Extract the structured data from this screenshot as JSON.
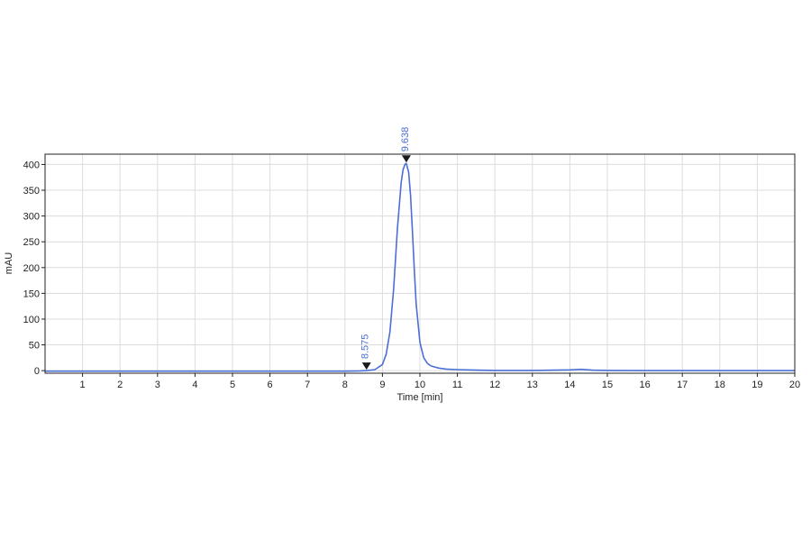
{
  "chart_data": {
    "type": "line",
    "xlabel": "Time [min]",
    "ylabel": "mAU",
    "xlim": [
      0,
      20
    ],
    "ylim": [
      -5,
      420
    ],
    "xticks": [
      1,
      2,
      3,
      4,
      5,
      6,
      7,
      8,
      9,
      10,
      11,
      12,
      13,
      14,
      15,
      16,
      17,
      18,
      19,
      20
    ],
    "yticks": [
      0,
      50,
      100,
      150,
      200,
      250,
      300,
      350,
      400
    ],
    "grid": true,
    "line_color": "#4a6fd6",
    "series": [
      {
        "x": [
          0,
          1,
          2,
          3,
          4,
          5,
          6,
          7,
          8,
          8.4,
          8.575,
          8.8,
          9.0,
          9.1,
          9.2,
          9.3,
          9.4,
          9.5,
          9.55,
          9.6,
          9.638,
          9.7,
          9.75,
          9.8,
          9.85,
          9.9,
          10.0,
          10.1,
          10.2,
          10.3,
          10.5,
          10.7,
          11.0,
          11.5,
          12,
          13,
          14,
          14.3,
          14.6,
          15,
          16,
          17,
          18,
          19,
          20
        ],
        "y": [
          -1,
          -1,
          -1,
          -1,
          -1,
          -1,
          -1,
          -1,
          -1,
          -0.5,
          0,
          2,
          12,
          32,
          75,
          160,
          275,
          365,
          390,
          400,
          402,
          385,
          340,
          270,
          195,
          130,
          55,
          25,
          14,
          9,
          5,
          3,
          2,
          1,
          0.5,
          0.5,
          1.5,
          2.5,
          1,
          0.5,
          0,
          0,
          0,
          0,
          0
        ]
      }
    ],
    "peaks": [
      {
        "time": 8.575,
        "label": "8.575",
        "marker_y": 0
      },
      {
        "time": 9.638,
        "label": "9.638",
        "marker_y": 402
      }
    ]
  }
}
